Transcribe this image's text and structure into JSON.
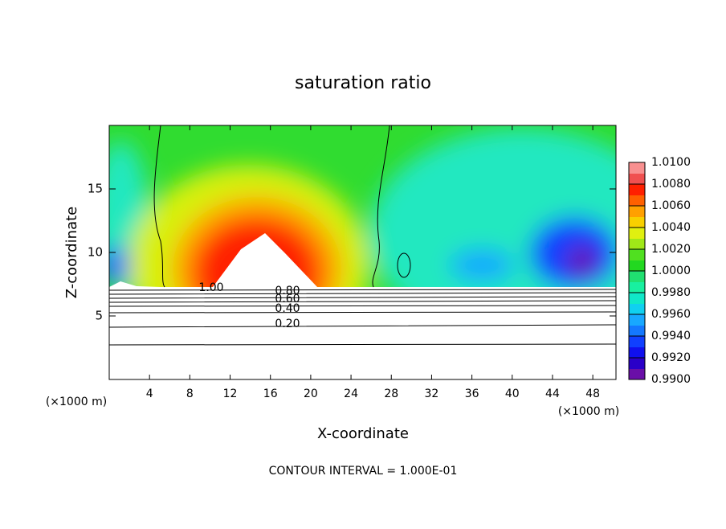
{
  "chart_data": {
    "type": "contour",
    "title": "saturation ratio",
    "x_label": "X-coordinate",
    "y_label": "Z-coordinate",
    "x_unit": "(×1000 m)",
    "y_unit": "(×1000 m)",
    "xlim": [
      0,
      50.3
    ],
    "xticks": [
      4,
      8,
      12,
      16,
      20,
      24,
      28,
      32,
      36,
      40,
      44,
      48
    ],
    "ylim": [
      0,
      20
    ],
    "yticks": [
      5,
      10,
      15
    ],
    "colorbar": {
      "lim": [
        0.99,
        1.01
      ],
      "ticks": [
        {
          "value": 0.99,
          "label": "0.9900"
        },
        {
          "value": 0.992,
          "label": "0.9920"
        },
        {
          "value": 0.994,
          "label": "0.9940"
        },
        {
          "value": 0.996,
          "label": "0.9960"
        },
        {
          "value": 0.998,
          "label": "0.9980"
        },
        {
          "value": 1.0,
          "label": "1.0000"
        },
        {
          "value": 1.002,
          "label": "1.0020"
        },
        {
          "value": 1.004,
          "label": "1.0040"
        },
        {
          "value": 1.006,
          "label": "1.0060"
        },
        {
          "value": 1.008,
          "label": "1.0080"
        },
        {
          "value": 1.01,
          "label": "1.0100"
        }
      ],
      "colors": [
        "#6a0fa8",
        "#2a00c8",
        "#1010ee",
        "#1040ff",
        "#1478ff",
        "#18a8ff",
        "#10d0f0",
        "#10e8c8",
        "#18f0a0",
        "#20e070",
        "#22d820",
        "#50e020",
        "#a0e818",
        "#e0f010",
        "#f8d000",
        "#ffa000",
        "#ff6000",
        "#ff2000",
        "#f05050",
        "#f89090"
      ]
    },
    "contour_labels": [
      {
        "value": 1.0,
        "label": "1.00"
      },
      {
        "value": 0.8,
        "label": "0.80"
      },
      {
        "value": 0.6,
        "label": "0.60"
      },
      {
        "value": 0.4,
        "label": "0.40"
      },
      {
        "value": 0.2,
        "label": "0.20"
      }
    ],
    "footer": "CONTOUR INTERVAL = 1.000E-01"
  }
}
